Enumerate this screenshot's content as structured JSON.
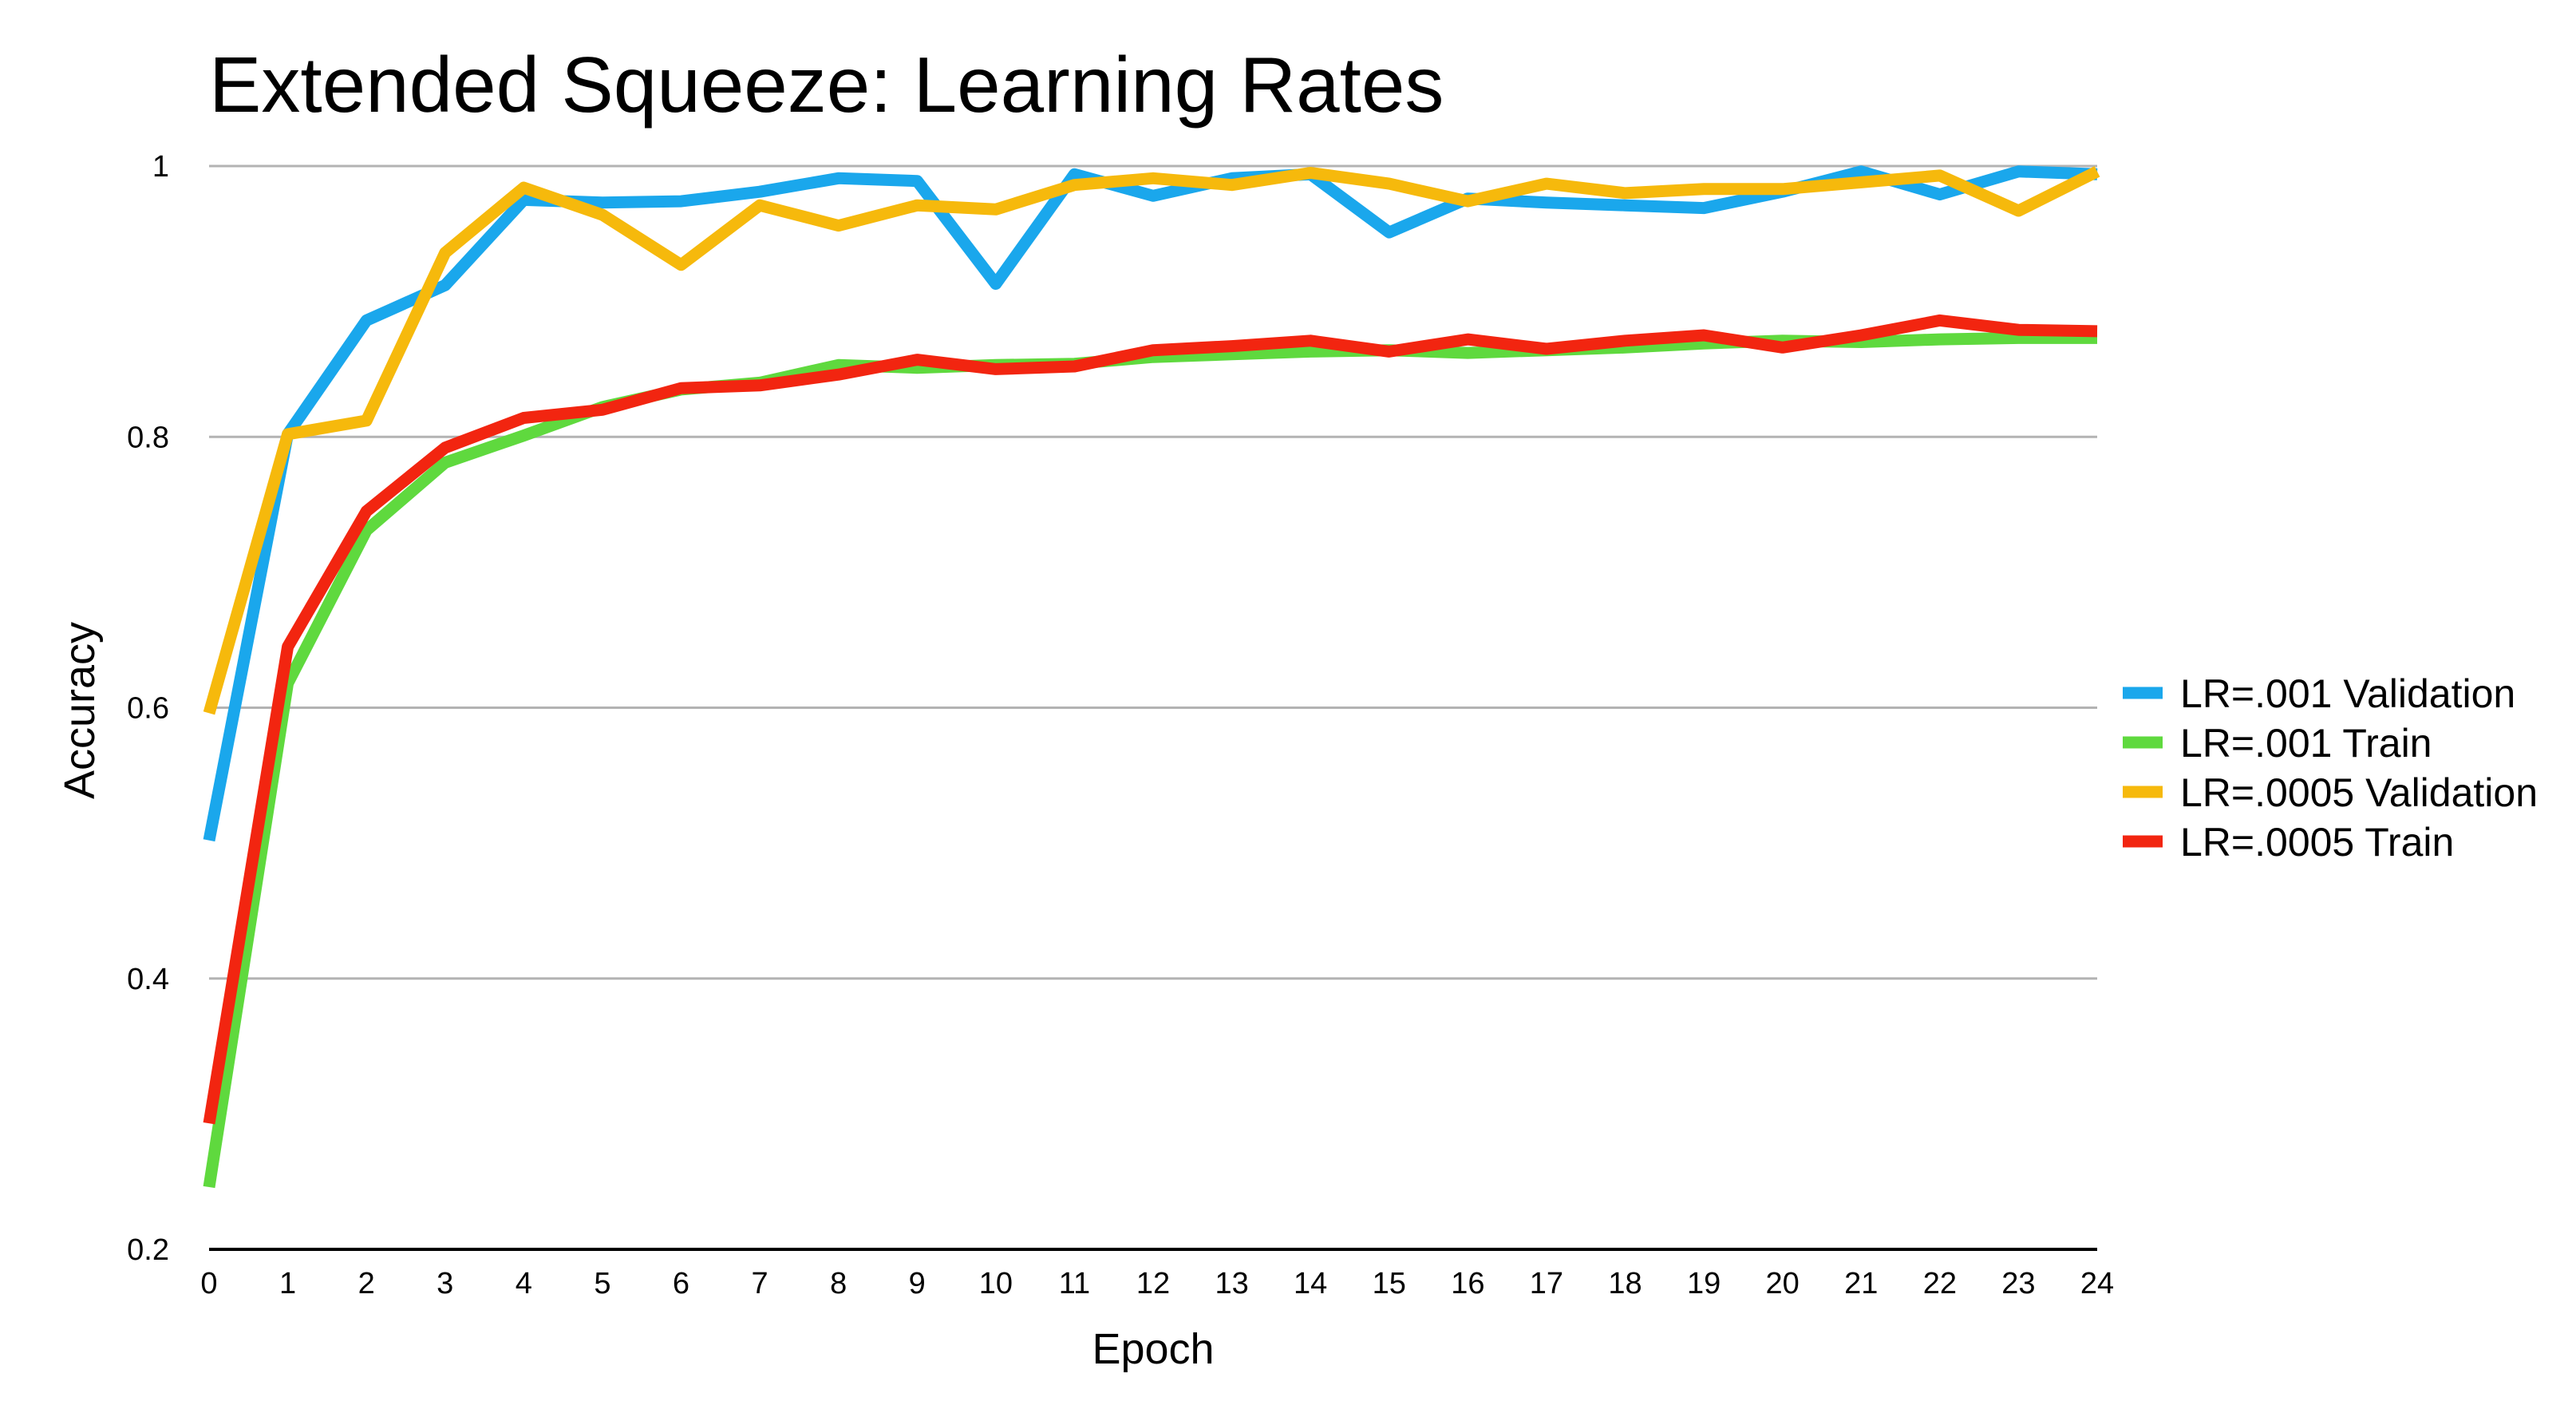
{
  "chart_data": {
    "type": "line",
    "title": "Extended Squeeze: Learning Rates",
    "xlabel": "Epoch",
    "ylabel": "Accuracy",
    "ylim": [
      0.2,
      1.0
    ],
    "yticks": [
      0.2,
      0.4,
      0.6,
      0.8,
      1
    ],
    "ytick_labels": [
      "0.2",
      "0.4",
      "0.6",
      "0.8",
      "1"
    ],
    "x": [
      0,
      1,
      2,
      3,
      4,
      5,
      6,
      7,
      8,
      9,
      10,
      11,
      12,
      13,
      14,
      15,
      16,
      17,
      18,
      19,
      20,
      21,
      22,
      23,
      24
    ],
    "x_labels": [
      "0",
      "1",
      "2",
      "3",
      "4",
      "5",
      "6",
      "7",
      "8",
      "9",
      "10",
      "11",
      "12",
      "13",
      "14",
      "15",
      "16",
      "17",
      "18",
      "19",
      "20",
      "21",
      "22",
      "23",
      "24"
    ],
    "grid": true,
    "legend_position": "right",
    "series": [
      {
        "name": "LR=.001 Validation",
        "color": "#1aa7ec",
        "values": [
          0.502,
          0.802,
          0.886,
          0.912,
          0.975,
          0.973,
          0.974,
          0.981,
          0.991,
          0.989,
          0.913,
          0.994,
          0.978,
          0.991,
          0.994,
          0.951,
          0.976,
          0.973,
          0.971,
          0.969,
          0.981,
          0.996,
          0.979,
          0.996,
          0.994
        ]
      },
      {
        "name": "LR=.001 Train",
        "color": "#5fd93e",
        "values": [
          0.246,
          0.618,
          0.731,
          0.781,
          0.801,
          0.822,
          0.835,
          0.84,
          0.853,
          0.851,
          0.853,
          0.854,
          0.859,
          0.861,
          0.863,
          0.864,
          0.862,
          0.864,
          0.866,
          0.869,
          0.871,
          0.87,
          0.872,
          0.873,
          0.873
        ]
      },
      {
        "name": "LR=.0005 Validation",
        "color": "#f6b90c",
        "values": [
          0.596,
          0.802,
          0.812,
          0.936,
          0.984,
          0.964,
          0.927,
          0.971,
          0.956,
          0.971,
          0.968,
          0.986,
          0.991,
          0.986,
          0.995,
          0.987,
          0.974,
          0.987,
          0.98,
          0.983,
          0.983,
          0.988,
          0.993,
          0.967,
          0.996
        ]
      },
      {
        "name": "LR=.0005 Train",
        "color": "#f22510",
        "values": [
          0.293,
          0.645,
          0.745,
          0.792,
          0.814,
          0.82,
          0.836,
          0.838,
          0.846,
          0.857,
          0.85,
          0.852,
          0.864,
          0.867,
          0.871,
          0.863,
          0.872,
          0.865,
          0.871,
          0.875,
          0.866,
          0.875,
          0.886,
          0.879,
          0.878
        ]
      }
    ]
  }
}
